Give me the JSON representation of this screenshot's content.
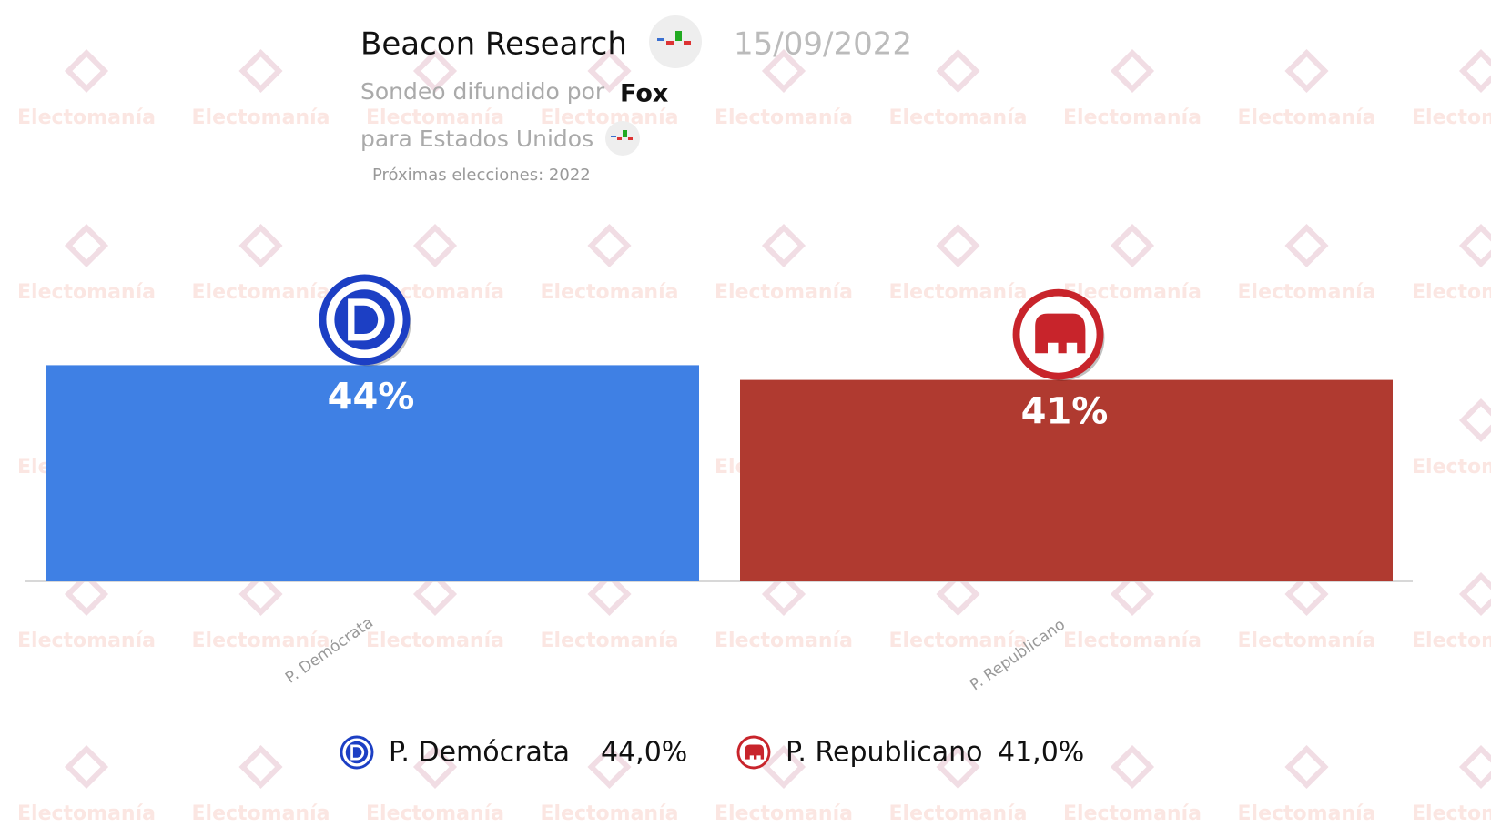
{
  "header": {
    "title": "Beacon Research",
    "date": "15/09/2022",
    "source_prefix": "Sondeo difundido por",
    "source": "Fox",
    "region": "para Estados Unidos",
    "next_elections": "Próximas elecciones: 2022",
    "watermark": "Electomanía"
  },
  "chart_data": {
    "type": "bar",
    "categories": [
      "P. Demócrata",
      "P. Republicano"
    ],
    "values": [
      44,
      41
    ],
    "value_labels": [
      "44%",
      "41%"
    ],
    "legend_value_labels": [
      "44,0%",
      "41,0%"
    ],
    "colors": [
      "#3f80e4",
      "#b03a30"
    ]
  }
}
